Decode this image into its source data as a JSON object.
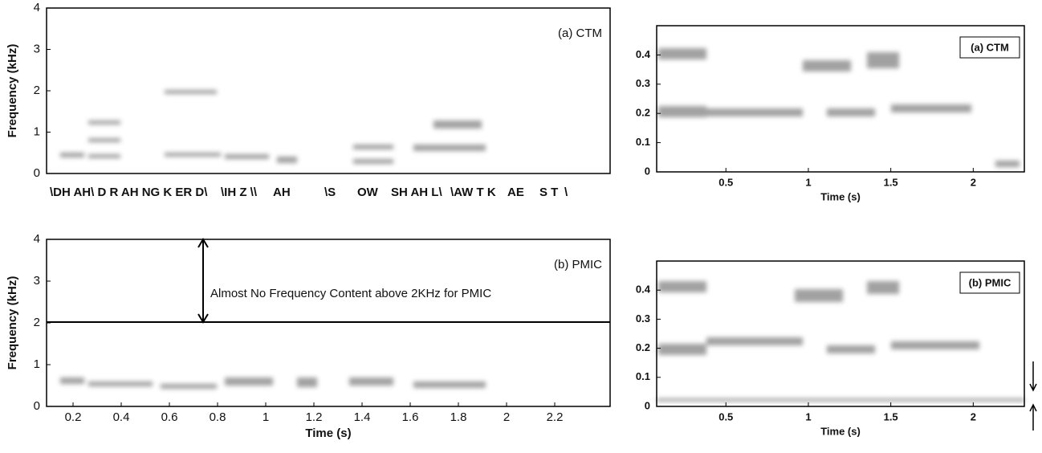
{
  "chart_data": [
    {
      "type": "spectrogram",
      "title": "(a) CTM",
      "ylabel": "Frequency (kHz)",
      "xlim": [
        0.09,
        2.43
      ],
      "ylim": [
        0,
        4
      ],
      "yticks": [
        0,
        1,
        2,
        3,
        4
      ],
      "annotations": [
        "\\DH AH\\ D R AH NG K ER D\\",
        "\\IH Z \\\\",
        "AH",
        "\\S",
        "OW",
        "SH AH L\\",
        "\\AW T K",
        "AE",
        "S T",
        "\\"
      ]
    },
    {
      "type": "spectrogram",
      "title": "(a) CTM",
      "xlabel": "Time (s)",
      "xlim": [
        0.08,
        2.31
      ],
      "ylim": [
        0,
        0.5
      ],
      "xticks": [
        0.5,
        1,
        1.5,
        2
      ],
      "yticks": [
        0,
        0.1,
        0.2,
        0.3,
        0.4
      ]
    },
    {
      "type": "spectrogram",
      "title": "(b) PMIC",
      "xlabel": "Time (s)",
      "ylabel": "Frequency (kHz)",
      "xlim": [
        0.09,
        2.43
      ],
      "ylim": [
        0,
        4
      ],
      "xticks": [
        0.2,
        0.4,
        0.6,
        0.8,
        1,
        1.2,
        1.4,
        1.6,
        1.8,
        2,
        2.2
      ],
      "yticks": [
        0,
        1,
        2,
        3,
        4
      ],
      "annotations": [
        "Almost No Frequency Content above 2KHz for PMIC"
      ]
    },
    {
      "type": "spectrogram",
      "title": "(b) PMIC",
      "xlabel": "Time (s)",
      "xlim": [
        0.08,
        2.31
      ],
      "ylim": [
        0,
        0.5
      ],
      "xticks": [
        0.5,
        1,
        1.5,
        2
      ],
      "yticks": [
        0,
        0.1,
        0.2,
        0.3,
        0.4
      ]
    }
  ]
}
